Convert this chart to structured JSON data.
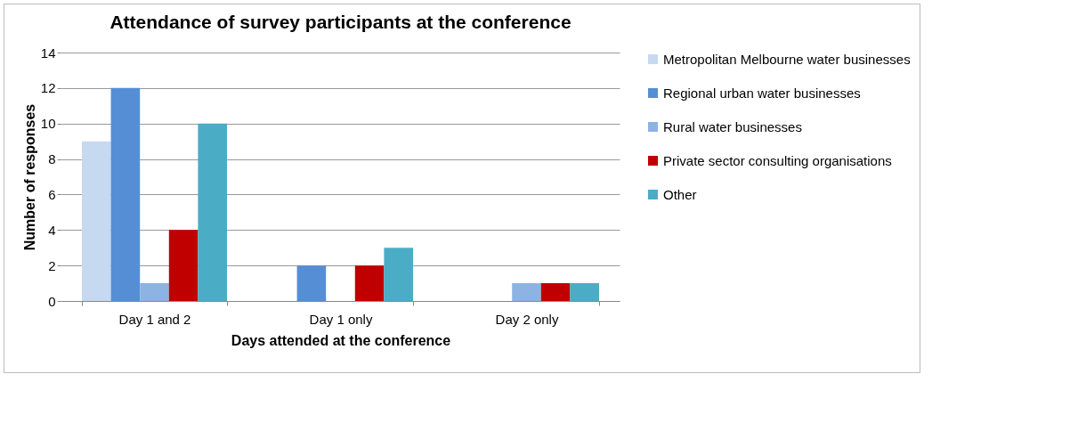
{
  "chart_data": {
    "type": "bar",
    "title": "Attendance of survey participants at the conference",
    "xlabel": "Days attended at the conference",
    "ylabel": "Number of responses",
    "categories": [
      "Day 1 and 2",
      "Day 1 only",
      "Day 2 only"
    ],
    "series": [
      {
        "name": "Metropolitan Melbourne water businesses",
        "color": "#c6d9f1",
        "values": [
          9,
          0,
          0
        ]
      },
      {
        "name": "Regional urban water businesses",
        "color": "#558ed5",
        "values": [
          12,
          2,
          0
        ]
      },
      {
        "name": "Rural water businesses",
        "color": "#8db3e2",
        "values": [
          1,
          0,
          1
        ]
      },
      {
        "name": "Private sector consulting organisations",
        "color": "#c00000",
        "values": [
          4,
          2,
          1
        ]
      },
      {
        "name": "Other",
        "color": "#4bacc6",
        "values": [
          10,
          3,
          1
        ]
      }
    ],
    "ylim": [
      0,
      14
    ],
    "yticks": [
      0,
      2,
      4,
      6,
      8,
      10,
      12,
      14
    ],
    "grid": "y",
    "legend": "right"
  }
}
